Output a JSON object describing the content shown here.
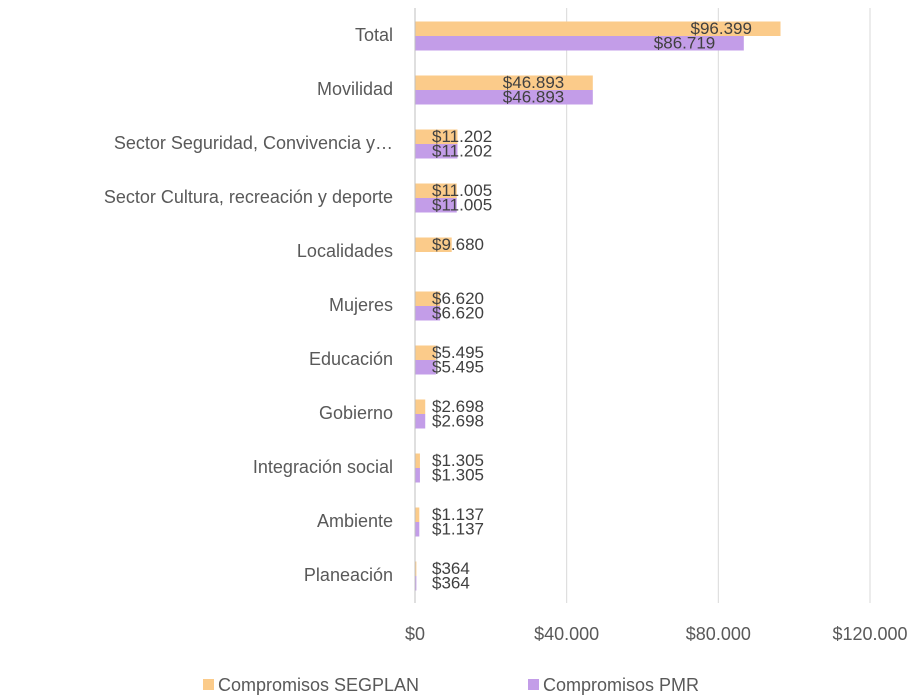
{
  "chart_data": {
    "type": "bar",
    "orientation": "horizontal",
    "categories": [
      "Total",
      "Movilidad",
      "Sector Seguridad, Convivencia y…",
      "Sector Cultura, recreación y deporte",
      "Localidades",
      "Mujeres",
      "Educación",
      "Gobierno",
      "Integración social",
      "Ambiente",
      "Planeación"
    ],
    "series": [
      {
        "name": "Compromisos SEGPLAN",
        "color": "#fbcb8a",
        "values": [
          96399,
          46893,
          11202,
          11005,
          9680,
          6620,
          5495,
          2698,
          1305,
          1137,
          364
        ],
        "value_labels": [
          "$96.399",
          "$46.893",
          "$11.202",
          "$11.005",
          "$9.680",
          "$6.620",
          "$5.495",
          "$2.698",
          "$1.305",
          "$1.137",
          "$364"
        ]
      },
      {
        "name": "Compromisos PMR",
        "color": "#c39de8",
        "values": [
          86719,
          46893,
          11202,
          11005,
          null,
          6620,
          5495,
          2698,
          1305,
          1137,
          364
        ],
        "value_labels": [
          "$86.719",
          "$46.893",
          "$11.202",
          "$11.005",
          null,
          "$6.620",
          "$5.495",
          "$2.698",
          "$1.305",
          "$1.137",
          "$364"
        ]
      }
    ],
    "xlim": [
      0,
      120000
    ],
    "xticks": [
      {
        "value": 0,
        "label": "$0"
      },
      {
        "value": 40000,
        "label": "$40.000"
      },
      {
        "value": 80000,
        "label": "$80.000"
      },
      {
        "value": 120000,
        "label": "$120.000"
      }
    ],
    "grid": true,
    "legend": "bottom"
  }
}
